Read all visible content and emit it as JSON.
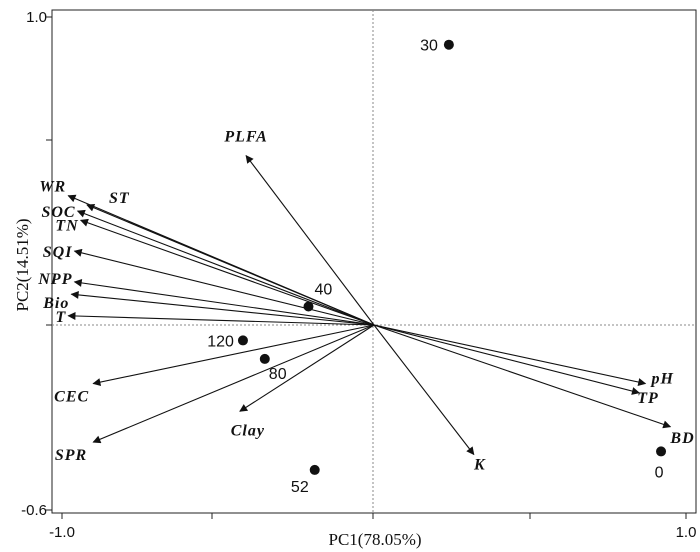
{
  "chart_data": {
    "type": "scatter",
    "title": "",
    "xlabel": "PC1(78.05%)",
    "ylabel": "PC2(14.51%)",
    "xlim": [
      -1.0,
      1.0
    ],
    "ylim": [
      -0.6,
      1.0
    ],
    "x_ticks": [
      "-1.0",
      "1.0"
    ],
    "y_ticks": [
      "1.0",
      "-0.6"
    ],
    "grid": false,
    "reference_lines": {
      "x": 0,
      "y": 0
    },
    "loadings": [
      {
        "name": "PLFA",
        "x": -0.41,
        "y": 0.55
      },
      {
        "name": "WR",
        "x": -0.98,
        "y": 0.42
      },
      {
        "name": "ST",
        "x": -0.92,
        "y": 0.39
      },
      {
        "name": "SOC",
        "x": -0.95,
        "y": 0.37
      },
      {
        "name": "TN",
        "x": -0.94,
        "y": 0.34
      },
      {
        "name": "SQI",
        "x": -0.96,
        "y": 0.24
      },
      {
        "name": "NPP",
        "x": -0.96,
        "y": 0.14
      },
      {
        "name": "Bio",
        "x": -0.97,
        "y": 0.1
      },
      {
        "name": "T",
        "x": -0.98,
        "y": 0.03
      },
      {
        "name": "CEC",
        "x": -0.9,
        "y": -0.19
      },
      {
        "name": "Clay",
        "x": -0.43,
        "y": -0.28
      },
      {
        "name": "SPR",
        "x": -0.9,
        "y": -0.38
      },
      {
        "name": "K",
        "x": 0.32,
        "y": -0.42
      },
      {
        "name": "pH",
        "x": 0.87,
        "y": -0.19
      },
      {
        "name": "TP",
        "x": 0.85,
        "y": -0.22
      },
      {
        "name": "BD",
        "x": 0.95,
        "y": -0.33
      }
    ],
    "scores": [
      {
        "name": "30",
        "x": 0.24,
        "y": 0.91
      },
      {
        "name": "40",
        "x": -0.21,
        "y": 0.06
      },
      {
        "name": "120",
        "x": -0.42,
        "y": -0.05
      },
      {
        "name": "80",
        "x": -0.35,
        "y": -0.11
      },
      {
        "name": "52",
        "x": -0.19,
        "y": -0.47
      },
      {
        "name": "0",
        "x": 0.92,
        "y": -0.41
      }
    ]
  }
}
